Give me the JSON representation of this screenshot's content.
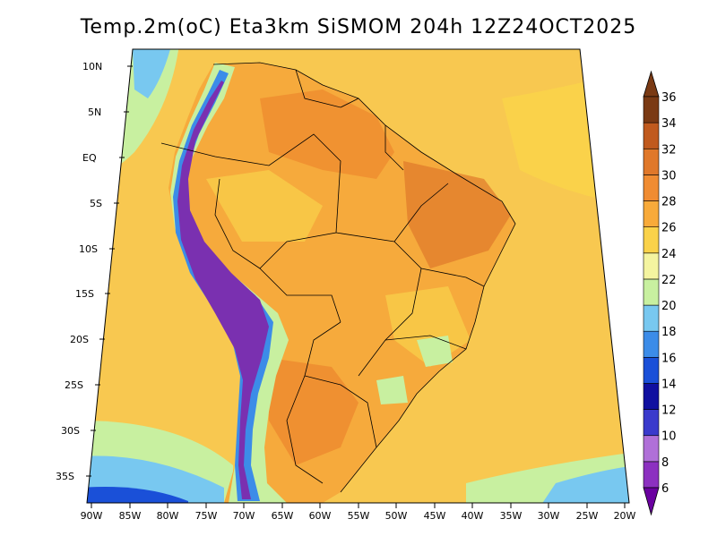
{
  "title": "Temp.2m(oC) Eta3km SiSMOM 204h 12Z24OCT2025",
  "map": {
    "lat_labels": [
      "10N",
      "5N",
      "EQ",
      "5S",
      "10S",
      "15S",
      "20S",
      "25S",
      "30S",
      "35S"
    ],
    "lon_labels": [
      "90W",
      "85W",
      "80W",
      "75W",
      "70W",
      "65W",
      "60W",
      "55W",
      "50W",
      "45W",
      "40W",
      "35W",
      "30W",
      "25W",
      "20W"
    ]
  },
  "colorbar": {
    "labels": [
      "6",
      "8",
      "10",
      "12",
      "14",
      "16",
      "18",
      "20",
      "22",
      "24",
      "26",
      "28",
      "30",
      "32",
      "34",
      "36"
    ],
    "colors": [
      "#6a00a0",
      "#8c30c0",
      "#b070d8",
      "#3a3acc",
      "#1010a0",
      "#1a50d8",
      "#3c8ce8",
      "#78c8f0",
      "#c8f0a0",
      "#f4f4a0",
      "#fad24a",
      "#f8aa3a",
      "#f08c32",
      "#e0782a",
      "#c05a1e",
      "#7a3a14"
    ]
  },
  "styles": {
    "ocean_color": "#f8c850",
    "land_warm": "#f6aa3c",
    "land_hot": "#ee8a2e",
    "andes_color": "#7a30b0"
  }
}
